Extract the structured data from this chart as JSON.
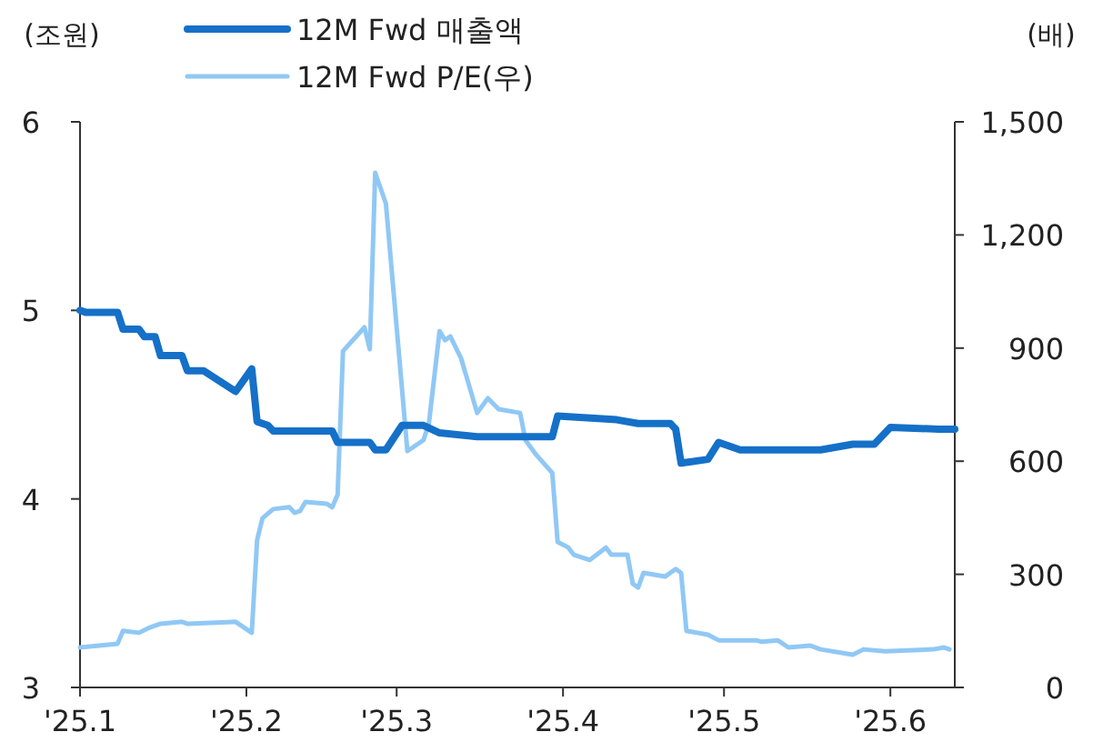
{
  "chart_data": {
    "type": "line",
    "ylabel": "(조원)",
    "y2label": "(배)",
    "legend": "top",
    "xlim": [
      "2025-01-01",
      "2025-06-13"
    ],
    "xticks": [
      {
        "value": "2025-01-01",
        "label": "'25.1"
      },
      {
        "value": "2025-02-01",
        "label": "'25.2"
      },
      {
        "value": "2025-03-01",
        "label": "'25.3"
      },
      {
        "value": "2025-04-01",
        "label": "'25.4"
      },
      {
        "value": "2025-05-01",
        "label": "'25.5"
      },
      {
        "value": "2025-06-01",
        "label": "'25.6"
      }
    ],
    "ylim": [
      3,
      6
    ],
    "yticks": [
      3,
      4,
      5,
      6
    ],
    "y2lim": [
      0,
      1500
    ],
    "y2ticks": [
      0,
      300,
      600,
      900,
      {
        "value": 1200,
        "label": "1,200"
      },
      {
        "value": 1500,
        "label": "1,500"
      }
    ],
    "series": [
      {
        "name": "12M Fwd 매출액",
        "color": "#1570c8",
        "x": [
          "2025-01-01",
          "2025-01-02",
          "2025-01-08",
          "2025-01-09",
          "2025-01-12",
          "2025-01-13",
          "2025-01-15",
          "2025-01-16",
          "2025-01-20",
          "2025-01-21",
          "2025-01-24",
          "2025-01-30",
          "2025-02-02",
          "2025-02-03",
          "2025-02-05",
          "2025-02-06",
          "2025-02-17",
          "2025-02-18",
          "2025-02-24",
          "2025-02-25",
          "2025-02-27",
          "2025-03-02",
          "2025-03-06",
          "2025-03-09",
          "2025-03-16",
          "2025-03-30",
          "2025-03-31",
          "2025-04-11",
          "2025-04-15",
          "2025-04-21",
          "2025-04-22",
          "2025-04-23",
          "2025-04-28",
          "2025-04-30",
          "2025-05-04",
          "2025-05-19",
          "2025-05-25",
          "2025-05-29",
          "2025-06-01",
          "2025-06-10",
          "2025-06-13"
        ],
        "values": [
          5.0,
          4.99,
          4.99,
          4.9,
          4.9,
          4.86,
          4.86,
          4.76,
          4.76,
          4.68,
          4.68,
          4.57,
          4.69,
          4.41,
          4.39,
          4.36,
          4.36,
          4.3,
          4.3,
          4.26,
          4.26,
          4.39,
          4.39,
          4.35,
          4.33,
          4.33,
          4.44,
          4.42,
          4.4,
          4.4,
          4.37,
          4.19,
          4.21,
          4.3,
          4.26,
          4.26,
          4.29,
          4.29,
          4.38,
          4.37,
          4.37
        ]
      },
      {
        "name": "12M Fwd P/E(우)",
        "color": "#90c8f5",
        "axis": "y2",
        "x": [
          "2025-01-01",
          "2025-01-08",
          "2025-01-09",
          "2025-01-12",
          "2025-01-14",
          "2025-01-16",
          "2025-01-20",
          "2025-01-21",
          "2025-01-30",
          "2025-02-02",
          "2025-02-03",
          "2025-02-04",
          "2025-02-06",
          "2025-02-09",
          "2025-02-10",
          "2025-02-11",
          "2025-02-12",
          "2025-02-16",
          "2025-02-17",
          "2025-02-18",
          "2025-02-19",
          "2025-02-23",
          "2025-02-24",
          "2025-02-25",
          "2025-02-27",
          "2025-03-03",
          "2025-03-06",
          "2025-03-07",
          "2025-03-09",
          "2025-03-10",
          "2025-03-11",
          "2025-03-13",
          "2025-03-16",
          "2025-03-18",
          "2025-03-20",
          "2025-03-24",
          "2025-03-25",
          "2025-03-27",
          "2025-03-30",
          "2025-03-31",
          "2025-04-02",
          "2025-04-03",
          "2025-04-06",
          "2025-04-09",
          "2025-04-10",
          "2025-04-13",
          "2025-04-14",
          "2025-04-15",
          "2025-04-16",
          "2025-04-20",
          "2025-04-22",
          "2025-04-23",
          "2025-04-24",
          "2025-04-28",
          "2025-04-30",
          "2025-05-07",
          "2025-05-08",
          "2025-05-11",
          "2025-05-13",
          "2025-05-17",
          "2025-05-19",
          "2025-05-25",
          "2025-05-27",
          "2025-05-31",
          "2025-06-09",
          "2025-06-11",
          "2025-06-12"
        ],
        "values": [
          106,
          116,
          150,
          145,
          159,
          169,
          174,
          169,
          174,
          145,
          391,
          449,
          473,
          478,
          463,
          468,
          492,
          487,
          478,
          511,
          892,
          955,
          897,
          1365,
          1283,
          627,
          656,
          699,
          945,
          921,
          931,
          873,
          728,
          767,
          738,
          728,
          656,
          617,
          569,
          386,
          371,
          352,
          338,
          371,
          352,
          352,
          275,
          265,
          304,
          294,
          314,
          304,
          150,
          140,
          125,
          125,
          121,
          125,
          106,
          111,
          101,
          87,
          101,
          96,
          101,
          106,
          101
        ]
      }
    ]
  }
}
